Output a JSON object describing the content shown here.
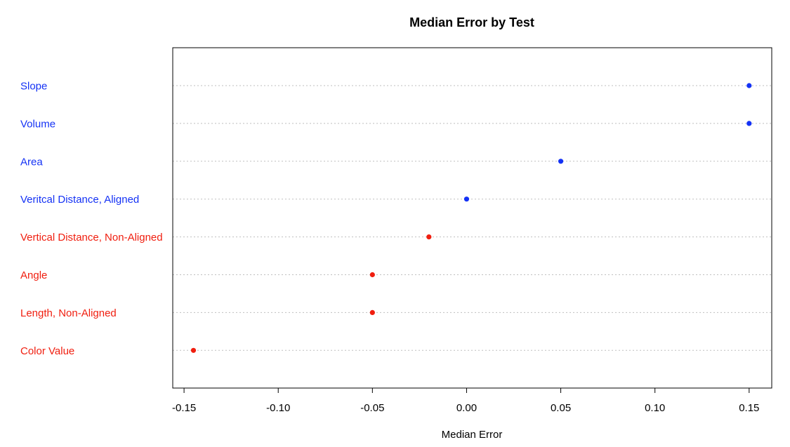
{
  "chart_data": {
    "type": "scatter",
    "title": "Median Error by Test",
    "xlabel": "Median Error",
    "ylabel": "",
    "xlim": [
      -0.156,
      0.162
    ],
    "xticks": [
      -0.15,
      -0.1,
      -0.05,
      0.0,
      0.05,
      0.1,
      0.15
    ],
    "xtick_labels": [
      "-0.15",
      "-0.10",
      "-0.05",
      "0.00",
      "0.05",
      "0.10",
      "0.15"
    ],
    "grid": "horizontal dotted lines at each category",
    "legend": "none",
    "categories": [
      "Slope",
      "Volume",
      "Area",
      "Veritcal Distance, Aligned",
      "Vertical Distance, Non-Aligned",
      "Angle",
      "Length, Non-Aligned",
      "Color Value"
    ],
    "values": [
      0.15,
      0.15,
      0.05,
      0.0,
      -0.02,
      -0.05,
      -0.05,
      -0.145
    ],
    "point_colors": [
      "#1432f5",
      "#1432f5",
      "#1432f5",
      "#1432f5",
      "#f01e0f",
      "#f01e0f",
      "#f01e0f",
      "#f01e0f"
    ]
  },
  "colors": {
    "blue": "#1432f5",
    "red": "#f01e0f",
    "grid": "#bfbfbf",
    "frame": "#000000"
  }
}
